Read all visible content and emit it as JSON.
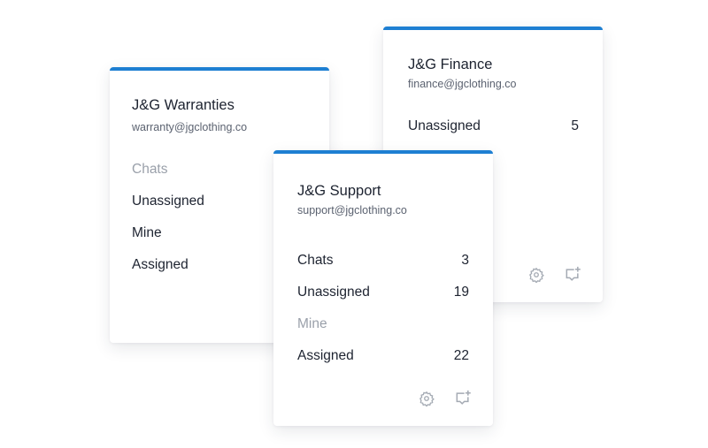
{
  "accent_color": "#1e7fd2",
  "cards": [
    {
      "title": "J&G Warranties",
      "email": "warranty@jgclothing.co",
      "rows": [
        {
          "label": "Chats",
          "count": "",
          "dim": true
        },
        {
          "label": "Unassigned",
          "count": ""
        },
        {
          "label": "Mine",
          "count": ""
        },
        {
          "label": "Assigned",
          "count": ""
        }
      ]
    },
    {
      "title": "J&G Finance",
      "email": "finance@jgclothing.co",
      "rows": [
        {
          "label": "Unassigned",
          "count": "5"
        }
      ],
      "icons": [
        "gear-icon",
        "add-chat-icon"
      ]
    },
    {
      "title": "J&G Support",
      "email": "support@jgclothing.co",
      "rows": [
        {
          "label": "Chats",
          "count": "3"
        },
        {
          "label": "Unassigned",
          "count": "19"
        },
        {
          "label": "Mine",
          "count": "",
          "dim": true
        },
        {
          "label": "Assigned",
          "count": "22"
        }
      ],
      "icons": [
        "gear-icon",
        "add-chat-icon"
      ]
    }
  ]
}
